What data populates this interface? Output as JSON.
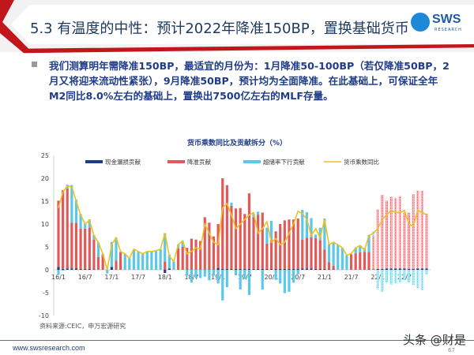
{
  "header": {
    "title": "5.3 有温度的中性：预计2022年降准150BP，置换基础货币",
    "logo_text": "SWS",
    "logo_sub": "RESEARCH"
  },
  "bullet": {
    "text": "我们测算明年需降准150BP，最适宜的月份为：1月降准50-100BP（若仅降准50BP，2月又将迎来流动性紧张），9月降准50BP，预计均为全面降准。在此基础上，可保证全年M2同比8.0%左右的基础上，置换出7500亿左右的MLF存量。"
  },
  "footer": {
    "source": "资料来源:CEIC，申万宏源研究",
    "url": "www.swsresearch.com",
    "watermark": "头条 @财是",
    "page": "67"
  },
  "colors": {
    "cash": "#1f3c88",
    "rrr": "#e05a5a",
    "excess": "#5bc8e8",
    "line": "#f0c020",
    "accent": "#c0161c"
  },
  "chart_data": {
    "type": "bar+line",
    "title": "货币乘数同比及贡献拆分（%）",
    "ylim": [
      -10,
      25
    ],
    "yticks": [
      "-10",
      "-5",
      "0",
      "5",
      "10",
      "15",
      "20",
      "25"
    ],
    "xticks": [
      {
        "label": "16/1",
        "i": 0
      },
      {
        "label": "16/7",
        "i": 6
      },
      {
        "label": "17/1",
        "i": 12
      },
      {
        "label": "17/7",
        "i": 18
      },
      {
        "label": "18/1",
        "i": 24
      },
      {
        "label": "18/7",
        "i": 30
      },
      {
        "label": "19/1",
        "i": 36
      },
      {
        "label": "19/7",
        "i": 42
      },
      {
        "label": "20/1",
        "i": 48
      },
      {
        "label": "20/7",
        "i": 54
      },
      {
        "label": "21/1",
        "i": 60
      },
      {
        "label": "21/7",
        "i": 66
      },
      {
        "label": "22/1",
        "i": 72
      },
      {
        "label": "22/7",
        "i": 78
      }
    ],
    "x_start": "2016-01",
    "x_end": "2022-12",
    "forecast_from": "2021-12",
    "legend": [
      "现金漏损贡献",
      "降准贡献",
      "超储率下行贡献",
      "货币乘数同比"
    ],
    "legend_position": "top",
    "series": [
      {
        "name": "现金漏损贡献",
        "type": "bar",
        "values": [
          0.6,
          0.2,
          0.3,
          0.3,
          0.3,
          0.2,
          0.2,
          0.2,
          0.1,
          0,
          0,
          0,
          0.6,
          0,
          0,
          0,
          0,
          0,
          0,
          0,
          0,
          0,
          0,
          0,
          -0.7,
          0.3,
          0,
          0,
          0,
          0,
          0,
          0,
          0,
          0,
          0,
          0,
          0.4,
          0.2,
          0.2,
          0.2,
          0.2,
          0.2,
          0.2,
          0.2,
          0.2,
          0.2,
          0.2,
          0.2,
          0.2,
          0.2,
          0.2,
          0.2,
          0.2,
          0.2,
          0.2,
          0.3,
          0.3,
          0.3,
          0.2,
          0.2,
          0.2,
          0.1,
          0.1,
          0,
          0,
          0,
          0,
          0,
          0,
          0,
          0.1,
          0.1,
          0.2,
          0.2,
          0.3,
          0.3,
          0.3,
          0.3,
          0.3,
          0.2,
          0.2,
          0.3,
          0.3,
          0.3
        ]
      },
      {
        "name": "降准贡献",
        "type": "bar",
        "values": [
          14.5,
          17.2,
          17.5,
          10,
          10,
          8.8,
          8.8,
          9,
          6.5,
          2.8,
          3.2,
          0,
          0,
          2,
          3.8,
          0,
          0,
          0,
          0,
          0,
          0,
          0,
          0,
          0,
          1.8,
          0,
          0,
          4.7,
          5,
          4.8,
          6.8,
          6.6,
          6.3,
          11.5,
          10.3,
          7.3,
          9.6,
          19.8,
          18.3,
          13.8,
          13.2,
          13.3,
          12,
          16.5,
          11.3,
          11.8,
          12.3,
          5.5,
          6.3,
          8.2,
          9.8,
          10.6,
          10.8,
          10.8,
          11,
          6.3,
          6.7,
          6.8,
          6.7,
          6.3,
          4.2,
          1.6,
          0.8,
          0,
          0,
          0,
          3.4,
          3.6,
          3.8,
          3.9,
          3.8,
          7.3,
          13,
          16.2,
          14.8,
          15.7,
          15.4,
          15.8,
          12.3,
          12.3,
          16.3,
          17,
          17,
          12
        ]
      },
      {
        "name": "超储率下行贡献",
        "type": "bar",
        "values": [
          -1,
          -0.2,
          0.8,
          8.2,
          5,
          3.2,
          1.2,
          1.8,
          1,
          3.2,
          0.3,
          -0.8,
          5.5,
          5,
          0.2,
          3.5,
          2.5,
          4.5,
          4,
          3.5,
          4,
          4,
          4.2,
          4.5,
          6.2,
          3,
          1.8,
          0.8,
          1.3,
          -1.3,
          -2.8,
          -1.8,
          -1.8,
          -1.5,
          -2.3,
          -1.3,
          -3,
          -6.7,
          -3.8,
          0.7,
          -1.2,
          -4.3,
          -2,
          -5.5,
          0.7,
          0.7,
          -4.3,
          3.5,
          4.2,
          -2.2,
          -3,
          -5.1,
          -4.8,
          -2.8,
          -1,
          6.5,
          5.6,
          4.2,
          0.8,
          2.7,
          6.8,
          3.9,
          5.2,
          5.5,
          4.8,
          3.2,
          0.1,
          1.2,
          1.5,
          0.9,
          3.7,
          1,
          -4.2,
          -4.8,
          -2.8,
          -3.2,
          -2.9,
          -2.8,
          -2.3,
          -2.8,
          -3.3,
          -4,
          -4.5,
          -1
        ]
      },
      {
        "name": "货币乘数同比",
        "type": "line",
        "values": [
          13.5,
          17,
          18.3,
          18.2,
          15,
          12,
          10,
          10.8,
          7.5,
          6,
          3.5,
          0,
          5.5,
          7,
          4,
          3.5,
          2.5,
          4.5,
          4,
          3.5,
          4,
          4,
          4.2,
          4.5,
          8,
          3,
          1.8,
          5.5,
          6.3,
          3.5,
          4,
          4.8,
          4.5,
          10,
          8,
          6,
          5.5,
          13.5,
          14.5,
          12,
          9,
          10,
          11,
          12,
          12.5,
          8,
          9,
          10.5,
          6,
          6.8,
          5.5,
          6,
          8,
          10,
          12.8,
          12.3,
          11,
          7.5,
          9,
          7,
          11,
          5.5,
          6,
          5.5,
          4.8,
          3.2,
          3.5,
          4.8,
          5.3,
          4.3,
          7.5,
          8,
          9,
          11,
          12,
          13,
          12.5,
          12.5,
          13,
          10,
          9.5,
          13,
          12.5,
          12
        ]
      }
    ]
  }
}
